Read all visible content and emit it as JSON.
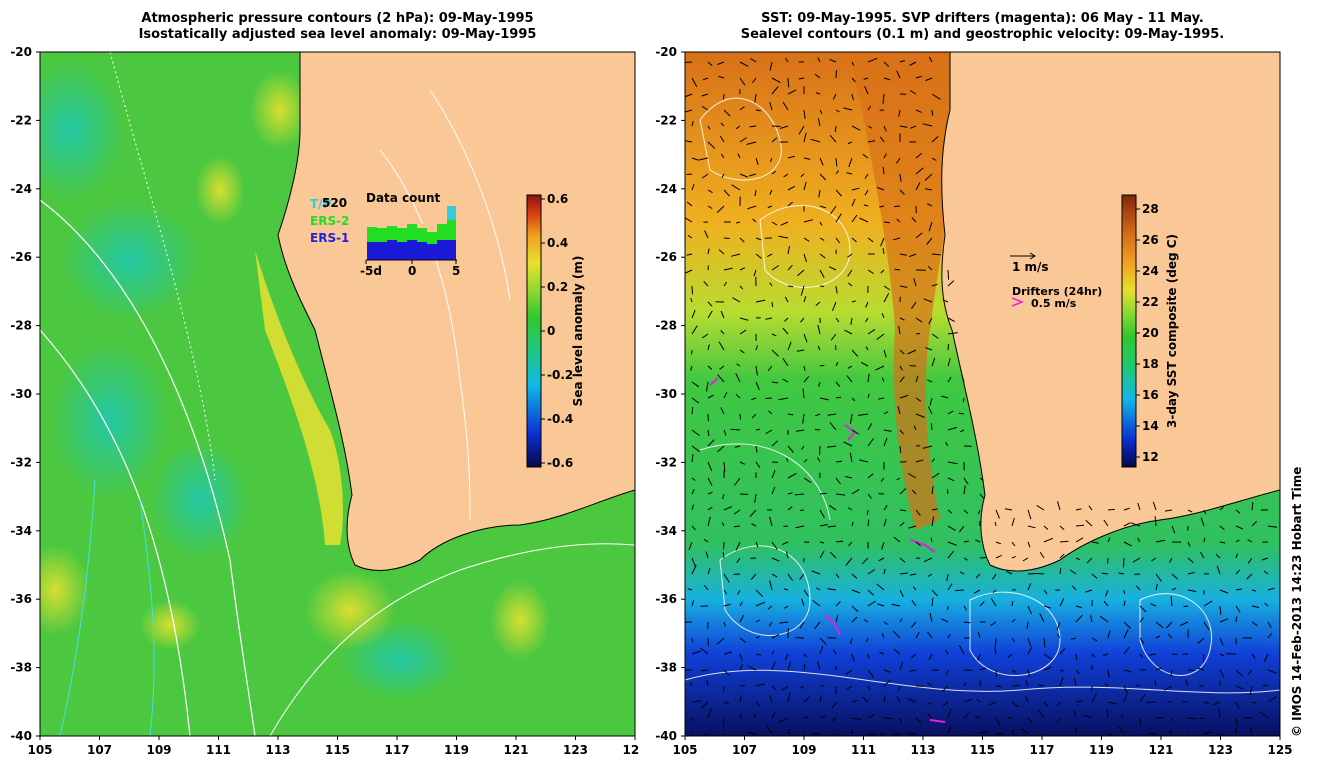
{
  "left_panel": {
    "title_line1": "Atmospheric pressure contours (2 hPa): 09-May-1995",
    "title_line2": "Isostatically adjusted sea level anomaly: 09-May-1995",
    "colorbar": {
      "label": "Sea level anomaly (m)",
      "ticks": [
        "0.6",
        "0.4",
        "0.2",
        "0",
        "-0.2",
        "-0.4",
        "-0.6"
      ]
    },
    "legend": {
      "satellites": [
        {
          "name": "T/P",
          "color": "#33ccdd"
        },
        {
          "name": "ERS-2",
          "color": "#22dd22"
        },
        {
          "name": "ERS-1",
          "color": "#2222dd"
        }
      ],
      "count_value": "520",
      "data_count_title": "Data count",
      "data_count_ticks": [
        "-5d",
        "0",
        "5"
      ]
    }
  },
  "right_panel": {
    "title_line1": "SST: 09-May-1995. SVP drifters (magenta): 06 May - 11 May.",
    "title_line2": "Sealevel contours (0.1 m) and geostrophic velocity: 09-May-1995.",
    "colorbar": {
      "label": "3-day SST composite (deg C)",
      "ticks": [
        "28",
        "26",
        "24",
        "22",
        "20",
        "18",
        "16",
        "14",
        "12"
      ]
    },
    "velocity_scale_label": "1 m/s",
    "drifters_label": "Drifters (24hr)",
    "drifters_speed": "0.5 m/s"
  },
  "axes": {
    "lon_ticks": [
      "105",
      "107",
      "109",
      "111",
      "113",
      "115",
      "117",
      "119",
      "121",
      "123",
      "125"
    ],
    "lat_ticks": [
      "-20",
      "-22",
      "-24",
      "-26",
      "-28",
      "-30",
      "-32",
      "-34",
      "-36",
      "-38",
      "-40"
    ]
  },
  "credit": "© IMOS 14-Feb-2013 14:23 Hobart Time",
  "colors": {
    "land": "#fac896",
    "sla_scale": [
      "#08084a",
      "#0a2fd0",
      "#10b8e8",
      "#22c870",
      "#30c830",
      "#90d830",
      "#e8e030",
      "#f0a020",
      "#d84010",
      "#8a1410"
    ],
    "sst_scale": [
      "#08084a",
      "#0a2fd0",
      "#10b8e8",
      "#22c870",
      "#30c830",
      "#90d830",
      "#e8e030",
      "#f0a020",
      "#d87018",
      "#b04810",
      "#7a2808"
    ]
  }
}
